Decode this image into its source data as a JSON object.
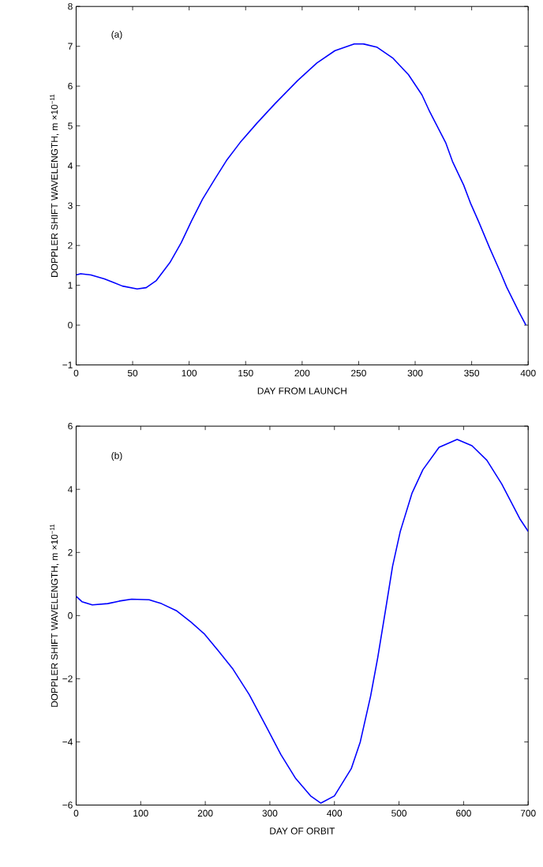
{
  "chart_data": [
    {
      "type": "line",
      "xlabel": "DAY FROM LAUNCH",
      "ylabel": "DOPPLER SHIFT WAVELENGTH, m ×10$^{−11}$",
      "annotations": [
        "(a)"
      ],
      "x": [
        0,
        4,
        13,
        25,
        33,
        41,
        54,
        62,
        71,
        83,
        93,
        102,
        112,
        123,
        133,
        145,
        160,
        176,
        196,
        213,
        229,
        246,
        254,
        266,
        280,
        294,
        306,
        313,
        327,
        333,
        343,
        349,
        356,
        366,
        376,
        381,
        392,
        398
      ],
      "series": [
        {
          "color": "#0000ff",
          "values": [
            1.26,
            1.29,
            1.26,
            1.16,
            1.07,
            0.98,
            0.91,
            0.94,
            1.12,
            1.57,
            2.07,
            2.61,
            3.17,
            3.68,
            4.13,
            4.58,
            5.07,
            5.56,
            6.14,
            6.58,
            6.89,
            7.06,
            7.06,
            6.98,
            6.71,
            6.29,
            5.78,
            5.35,
            4.58,
            4.11,
            3.51,
            3.06,
            2.61,
            1.93,
            1.29,
            0.95,
            0.32,
            0
          ]
        }
      ],
      "xlim": [
        0,
        400
      ],
      "xticks": [
        0,
        50,
        100,
        150,
        200,
        250,
        300,
        350,
        400
      ],
      "ylim": [
        -1,
        8
      ],
      "yticks": [
        {
          "value": -1,
          "label": "−1"
        },
        0,
        1,
        2,
        3,
        4,
        5,
        6,
        7,
        8
      ]
    },
    {
      "type": "line",
      "xlabel": "DAY OF ORBIT",
      "ylabel": "DOPPLER SHIFT WAVELENGTH, m ×10$^{−11}$",
      "annotations": [
        "(b)"
      ],
      "x": [
        0,
        9,
        25,
        49,
        67,
        86,
        113,
        132,
        155,
        178,
        199,
        220,
        243,
        268,
        294,
        317,
        340,
        363,
        379,
        400,
        426,
        440,
        456,
        467,
        479,
        490,
        502,
        520,
        537,
        562,
        590,
        613,
        636,
        659,
        687,
        700
      ],
      "series": [
        {
          "color": "#0000ff",
          "values": [
            0.61,
            0.44,
            0.34,
            0.38,
            0.46,
            0.52,
            0.5,
            0.38,
            0.16,
            -0.21,
            -0.59,
            -1.11,
            -1.7,
            -2.5,
            -3.5,
            -4.4,
            -5.16,
            -5.71,
            -5.94,
            -5.71,
            -4.85,
            -4.0,
            -2.55,
            -1.34,
            0.16,
            1.56,
            2.67,
            3.87,
            4.62,
            5.33,
            5.58,
            5.38,
            4.92,
            4.17,
            3.07,
            2.67
          ]
        }
      ],
      "xlim": [
        0,
        700
      ],
      "xticks": [
        0,
        100,
        200,
        300,
        400,
        500,
        600,
        700
      ],
      "ylim": [
        -6,
        6
      ],
      "yticks": [
        {
          "value": -6,
          "label": "−6"
        },
        {
          "value": -4,
          "label": "−4"
        },
        {
          "value": -2,
          "label": "−2"
        },
        0,
        2,
        4,
        6
      ]
    }
  ]
}
